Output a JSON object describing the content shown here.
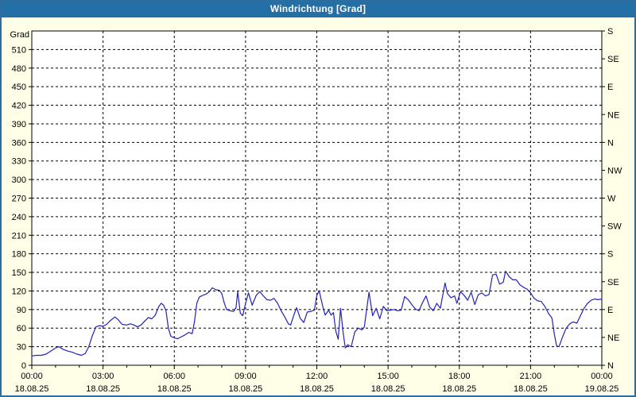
{
  "window": {
    "title": "Windrichtung [Grad]"
  },
  "colors": {
    "titlebar_bg": "#2470A6",
    "titlebar_text": "#FFFFFF",
    "window_bg": "#FFFFE8",
    "plot_bg": "#FFFFFF",
    "window_border": "#2E6E9E",
    "axis": "#000000",
    "grid": "#000000",
    "line": "#2222BB"
  },
  "chart_data": {
    "type": "line",
    "title": "Windrichtung [Grad]",
    "ylabel": "Grad",
    "ylim": [
      0,
      540
    ],
    "xlim_hours": [
      0,
      24
    ],
    "grid": true,
    "y_tick_labels": [
      0,
      30,
      60,
      90,
      120,
      150,
      180,
      210,
      240,
      270,
      300,
      330,
      360,
      390,
      420,
      450,
      480,
      510
    ],
    "x_ticks": [
      {
        "hour": 0,
        "time": "00:00",
        "date": "18.08.25"
      },
      {
        "hour": 3,
        "time": "03:00",
        "date": "18.08.25"
      },
      {
        "hour": 6,
        "time": "06:00",
        "date": "18.08.25"
      },
      {
        "hour": 9,
        "time": "09:00",
        "date": "18.08.25"
      },
      {
        "hour": 12,
        "time": "12:00",
        "date": "18.08.25"
      },
      {
        "hour": 15,
        "time": "15:00",
        "date": "18.08.25"
      },
      {
        "hour": 18,
        "time": "18:00",
        "date": "18.08.25"
      },
      {
        "hour": 21,
        "time": "21:00",
        "date": "18.08.25"
      },
      {
        "hour": 24,
        "time": "00:00",
        "date": "19.08.25"
      }
    ],
    "x_minor_tick_every_hours": 1,
    "right_axis_ticks": [
      {
        "deg": 0,
        "label": "N"
      },
      {
        "deg": 45,
        "label": "NE"
      },
      {
        "deg": 90,
        "label": "E"
      },
      {
        "deg": 135,
        "label": "SE"
      },
      {
        "deg": 180,
        "label": "S"
      },
      {
        "deg": 225,
        "label": "SW"
      },
      {
        "deg": 270,
        "label": "W"
      },
      {
        "deg": 315,
        "label": "NW"
      },
      {
        "deg": 360,
        "label": "N"
      },
      {
        "deg": 405,
        "label": "NE"
      },
      {
        "deg": 450,
        "label": "E"
      },
      {
        "deg": 495,
        "label": "SE"
      },
      {
        "deg": 540,
        "label": "S"
      }
    ],
    "series": [
      {
        "name": "Windrichtung",
        "color": "#2222BB",
        "points": [
          [
            0,
            15
          ],
          [
            0.2,
            16
          ],
          [
            0.4,
            16
          ],
          [
            0.6,
            18
          ],
          [
            0.8,
            23
          ],
          [
            1.0,
            28
          ],
          [
            1.15,
            30
          ],
          [
            1.3,
            26
          ],
          [
            1.5,
            23
          ],
          [
            1.7,
            21
          ],
          [
            1.9,
            18
          ],
          [
            2.1,
            16
          ],
          [
            2.25,
            19
          ],
          [
            2.4,
            30
          ],
          [
            2.55,
            48
          ],
          [
            2.7,
            62
          ],
          [
            2.85,
            64
          ],
          [
            3.0,
            63
          ],
          [
            3.15,
            66
          ],
          [
            3.3,
            72
          ],
          [
            3.5,
            78
          ],
          [
            3.65,
            73
          ],
          [
            3.8,
            66
          ],
          [
            4.0,
            65
          ],
          [
            4.15,
            67
          ],
          [
            4.3,
            65
          ],
          [
            4.45,
            62
          ],
          [
            4.6,
            65
          ],
          [
            4.75,
            71
          ],
          [
            4.9,
            77
          ],
          [
            5.05,
            75
          ],
          [
            5.2,
            81
          ],
          [
            5.35,
            95
          ],
          [
            5.45,
            100
          ],
          [
            5.55,
            97
          ],
          [
            5.65,
            88
          ],
          [
            5.75,
            60
          ],
          [
            5.85,
            47
          ],
          [
            6.0,
            44
          ],
          [
            6.15,
            43
          ],
          [
            6.3,
            46
          ],
          [
            6.45,
            49
          ],
          [
            6.6,
            53
          ],
          [
            6.75,
            51
          ],
          [
            6.85,
            70
          ],
          [
            6.95,
            100
          ],
          [
            7.05,
            110
          ],
          [
            7.2,
            113
          ],
          [
            7.35,
            115
          ],
          [
            7.5,
            120
          ],
          [
            7.6,
            125
          ],
          [
            7.75,
            122
          ],
          [
            7.9,
            121
          ],
          [
            8.0,
            116
          ],
          [
            8.1,
            101
          ],
          [
            8.2,
            90
          ],
          [
            8.35,
            88
          ],
          [
            8.5,
            87
          ],
          [
            8.6,
            93
          ],
          [
            8.67,
            119
          ],
          [
            8.78,
            84
          ],
          [
            8.88,
            80
          ],
          [
            9.0,
            100
          ],
          [
            9.12,
            117
          ],
          [
            9.28,
            97
          ],
          [
            9.45,
            113
          ],
          [
            9.6,
            119
          ],
          [
            9.75,
            112
          ],
          [
            9.9,
            106
          ],
          [
            10.05,
            105
          ],
          [
            10.2,
            108
          ],
          [
            10.35,
            100
          ],
          [
            10.5,
            88
          ],
          [
            10.65,
            78
          ],
          [
            10.8,
            67
          ],
          [
            10.9,
            65
          ],
          [
            11.05,
            83
          ],
          [
            11.15,
            93
          ],
          [
            11.3,
            76
          ],
          [
            11.45,
            69
          ],
          [
            11.6,
            86
          ],
          [
            11.75,
            87
          ],
          [
            11.9,
            89
          ],
          [
            12.0,
            113
          ],
          [
            12.1,
            120
          ],
          [
            12.25,
            95
          ],
          [
            12.35,
            81
          ],
          [
            12.5,
            89
          ],
          [
            12.6,
            81
          ],
          [
            12.7,
            85
          ],
          [
            12.8,
            55
          ],
          [
            12.9,
            42
          ],
          [
            13.0,
            92
          ],
          [
            13.1,
            55
          ],
          [
            13.2,
            28
          ],
          [
            13.3,
            33
          ],
          [
            13.45,
            30
          ],
          [
            13.6,
            54
          ],
          [
            13.75,
            60
          ],
          [
            13.9,
            57
          ],
          [
            14.0,
            62
          ],
          [
            14.1,
            90
          ],
          [
            14.2,
            118
          ],
          [
            14.35,
            80
          ],
          [
            14.5,
            92
          ],
          [
            14.65,
            75
          ],
          [
            14.8,
            95
          ],
          [
            14.95,
            88
          ],
          [
            15.1,
            89
          ],
          [
            15.25,
            90
          ],
          [
            15.4,
            88
          ],
          [
            15.55,
            89
          ],
          [
            15.7,
            111
          ],
          [
            15.85,
            106
          ],
          [
            16.0,
            98
          ],
          [
            16.15,
            91
          ],
          [
            16.3,
            88
          ],
          [
            16.45,
            101
          ],
          [
            16.6,
            112
          ],
          [
            16.75,
            94
          ],
          [
            16.9,
            88
          ],
          [
            17.05,
            100
          ],
          [
            17.2,
            92
          ],
          [
            17.4,
            133
          ],
          [
            17.5,
            116
          ],
          [
            17.65,
            109
          ],
          [
            17.8,
            112
          ],
          [
            17.9,
            100
          ],
          [
            18.05,
            119
          ],
          [
            18.2,
            113
          ],
          [
            18.35,
            105
          ],
          [
            18.5,
            118
          ],
          [
            18.65,
            98
          ],
          [
            18.8,
            114
          ],
          [
            18.95,
            117
          ],
          [
            19.1,
            112
          ],
          [
            19.25,
            114
          ],
          [
            19.4,
            146
          ],
          [
            19.55,
            147
          ],
          [
            19.7,
            131
          ],
          [
            19.85,
            134
          ],
          [
            19.95,
            152
          ],
          [
            20.1,
            143
          ],
          [
            20.25,
            138
          ],
          [
            20.4,
            138
          ],
          [
            20.55,
            130
          ],
          [
            20.7,
            126
          ],
          [
            20.85,
            123
          ],
          [
            21.0,
            117
          ],
          [
            21.15,
            108
          ],
          [
            21.3,
            104
          ],
          [
            21.45,
            103
          ],
          [
            21.6,
            95
          ],
          [
            21.75,
            84
          ],
          [
            21.9,
            76
          ],
          [
            22.0,
            50
          ],
          [
            22.1,
            31
          ],
          [
            22.2,
            30
          ],
          [
            22.35,
            46
          ],
          [
            22.5,
            60
          ],
          [
            22.65,
            67
          ],
          [
            22.8,
            70
          ],
          [
            22.95,
            68
          ],
          [
            23.1,
            80
          ],
          [
            23.25,
            92
          ],
          [
            23.4,
            100
          ],
          [
            23.55,
            105
          ],
          [
            23.7,
            107
          ],
          [
            23.85,
            106
          ],
          [
            24.0,
            107
          ]
        ]
      }
    ]
  }
}
